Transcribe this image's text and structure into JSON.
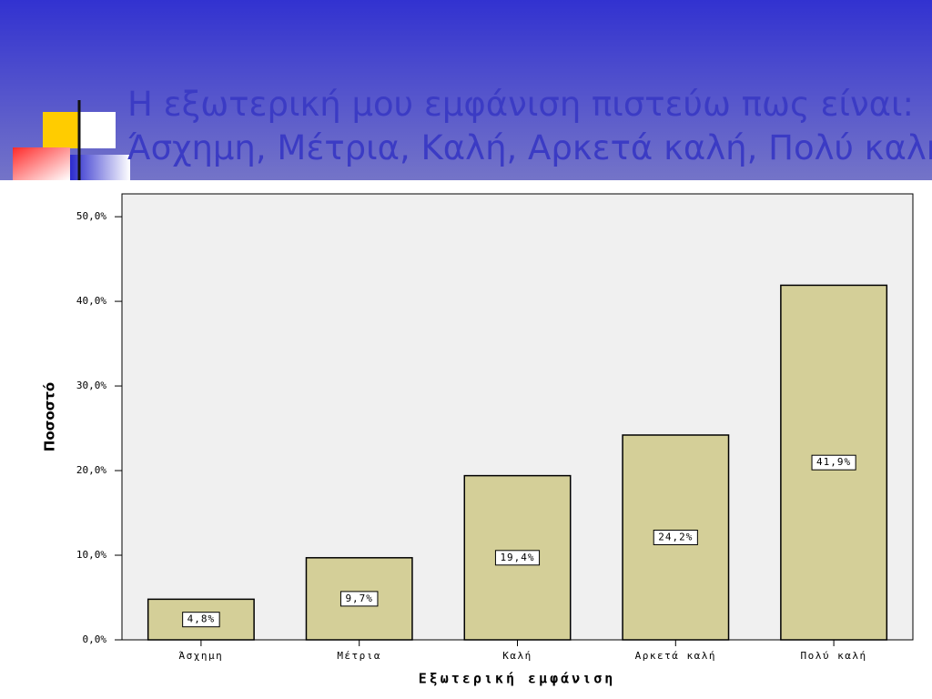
{
  "chart_data": {
    "type": "bar",
    "title": [
      "Η εξωτερική μου εμφάνιση πιστεύω πως είναι:",
      "Άσχημη, Μέτρια, Καλή, Αρκετά καλή, Πολύ καλή"
    ],
    "x_label": "Εξωτερική εμφάνιση",
    "y_label": "Ποσοστό",
    "categories": [
      "Άσχημη",
      "Μέτρια",
      "Καλή",
      "Αρκετά καλή",
      "Πολύ καλή"
    ],
    "values": [
      4.8,
      9.7,
      19.4,
      24.2,
      41.9
    ],
    "value_labels": [
      "4,8%",
      "9,7%",
      "19,4%",
      "24,2%",
      "41,9%"
    ],
    "color": "#d4cf98",
    "ylim": [
      0,
      52.7
    ],
    "yticks": [
      {
        "value": 0,
        "label": "0,0%"
      },
      {
        "value": 10,
        "label": "10,0%"
      },
      {
        "value": 20,
        "label": "20,0%"
      },
      {
        "value": 30,
        "label": "30,0%"
      },
      {
        "value": 40,
        "label": "40,0%"
      },
      {
        "value": 50,
        "label": "50,0%"
      }
    ],
    "grid": false
  }
}
